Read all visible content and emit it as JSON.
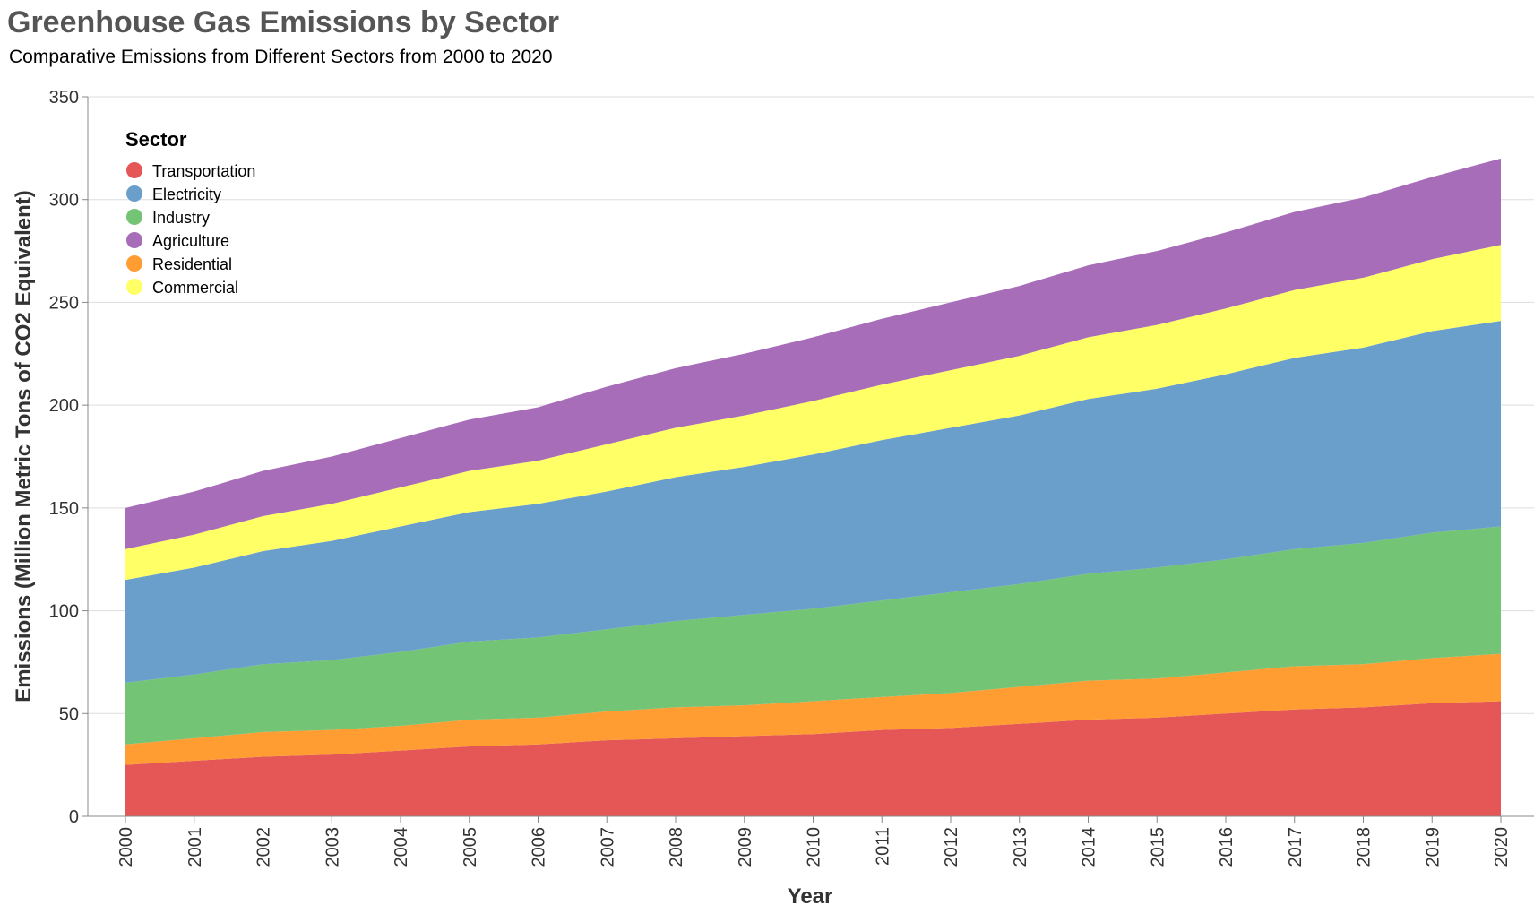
{
  "chart_data": {
    "type": "area",
    "stacked": true,
    "title": "Greenhouse Gas Emissions by Sector",
    "subtitle": "Comparative Emissions from Different Sectors from 2000 to 2020",
    "xlabel": "Year",
    "ylabel": "Emissions (Million Metric Tons of CO2 Equivalent)",
    "ylim": [
      0,
      350
    ],
    "y_ticks": [
      0,
      50,
      100,
      150,
      200,
      250,
      300,
      350
    ],
    "grid": true,
    "legend": {
      "title": "Sector",
      "placement": "top-left"
    },
    "x": [
      "2000",
      "2001",
      "2002",
      "2003",
      "2004",
      "2005",
      "2006",
      "2007",
      "2008",
      "2009",
      "2010",
      "2011",
      "2012",
      "2013",
      "2014",
      "2015",
      "2016",
      "2017",
      "2018",
      "2019",
      "2020"
    ],
    "stack_order": [
      "Transportation",
      "Residential",
      "Industry",
      "Electricity",
      "Commercial",
      "Agriculture"
    ],
    "series": [
      {
        "name": "Transportation",
        "color": "#e45756",
        "values": [
          25,
          27,
          29,
          30,
          32,
          34,
          35,
          37,
          38,
          39,
          40,
          42,
          43,
          45,
          47,
          48,
          50,
          52,
          53,
          55,
          56
        ]
      },
      {
        "name": "Electricity",
        "color": "#6a9ecb",
        "values": [
          50,
          52,
          55,
          58,
          61,
          63,
          65,
          67,
          70,
          72,
          75,
          78,
          80,
          82,
          85,
          87,
          90,
          93,
          95,
          98,
          100
        ]
      },
      {
        "name": "Industry",
        "color": "#74c476",
        "values": [
          30,
          31,
          33,
          34,
          36,
          38,
          39,
          40,
          42,
          44,
          45,
          47,
          49,
          50,
          52,
          54,
          55,
          57,
          59,
          61,
          62
        ]
      },
      {
        "name": "Agriculture",
        "color": "#a86db8",
        "values": [
          20,
          21,
          22,
          23,
          24,
          25,
          26,
          28,
          29,
          30,
          31,
          32,
          33,
          34,
          35,
          36,
          37,
          38,
          39,
          40,
          42
        ]
      },
      {
        "name": "Residential",
        "color": "#ff9d33",
        "values": [
          10,
          11,
          12,
          12,
          12,
          13,
          13,
          14,
          15,
          15,
          16,
          16,
          17,
          18,
          19,
          19,
          20,
          21,
          21,
          22,
          23
        ]
      },
      {
        "name": "Commercial",
        "color": "#ffff66",
        "values": [
          15,
          16,
          17,
          18,
          19,
          20,
          21,
          23,
          24,
          25,
          26,
          27,
          28,
          29,
          30,
          31,
          32,
          33,
          34,
          35,
          37
        ]
      }
    ]
  }
}
